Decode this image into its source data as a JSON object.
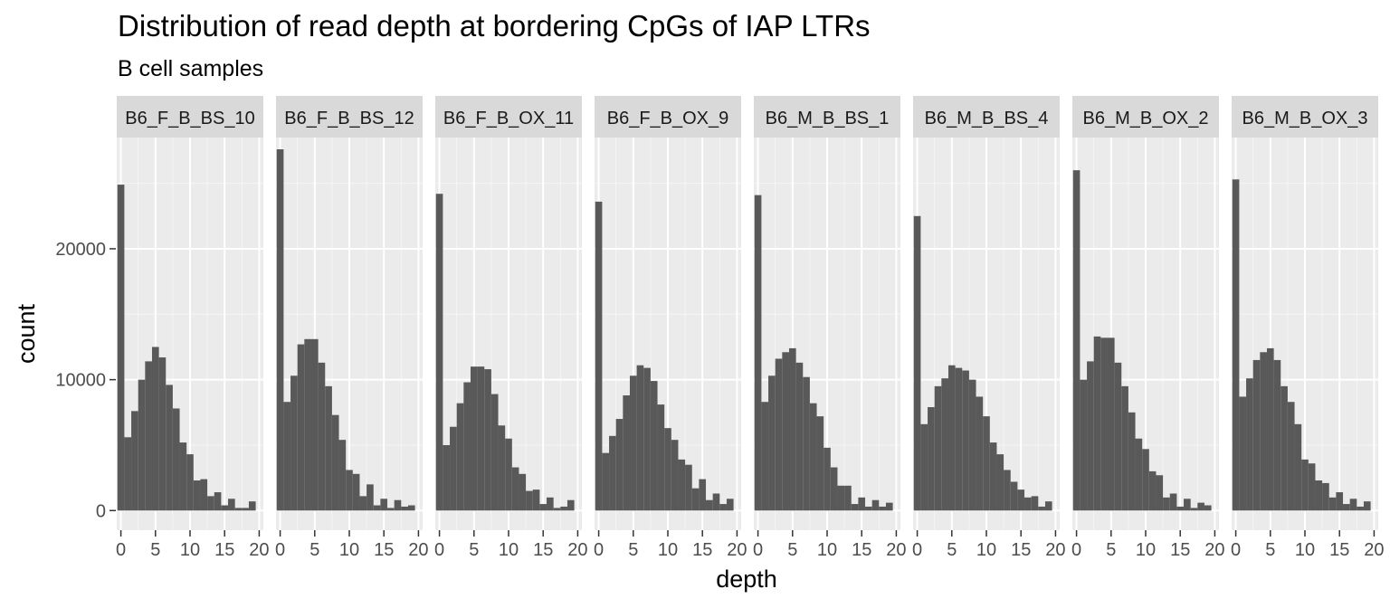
{
  "chart_data": {
    "type": "bar",
    "title": "Distribution of read depth at bordering CpGs of IAP LTRs",
    "subtitle": "B cell samples",
    "xlabel": "depth",
    "ylabel": "count",
    "xlim": [
      -0.6,
      20.6
    ],
    "ylim": [
      -1500,
      28500
    ],
    "x_ticks": [
      0,
      5,
      10,
      15,
      20
    ],
    "y_ticks": [
      0,
      10000,
      20000
    ],
    "y_tick_labels": [
      "0",
      "10000",
      "20000"
    ],
    "grid": true,
    "bar_color": "#595959",
    "panel_background": "#ebebeb",
    "strip_background": "#d9d9d9",
    "bins": [
      0,
      1,
      2,
      3,
      4,
      5,
      6,
      7,
      8,
      9,
      10,
      11,
      12,
      13,
      14,
      15,
      16,
      17,
      18,
      19,
      20
    ],
    "facets": [
      {
        "name": "B6_F_B_BS_10",
        "values": [
          24900,
          5600,
          7600,
          10000,
          11400,
          12500,
          11700,
          9600,
          7800,
          5200,
          4300,
          2300,
          2400,
          1100,
          1400,
          400,
          900,
          200,
          200,
          700,
          0
        ]
      },
      {
        "name": "B6_F_B_BS_12",
        "values": [
          27600,
          8300,
          10300,
          12700,
          13100,
          13100,
          11300,
          9500,
          7300,
          5400,
          3100,
          2800,
          1100,
          2000,
          400,
          900,
          200,
          800,
          300,
          400,
          0
        ]
      },
      {
        "name": "B6_F_B_OX_11",
        "values": [
          24200,
          5000,
          6400,
          8200,
          9800,
          11000,
          11000,
          10800,
          8900,
          6500,
          5500,
          3300,
          2800,
          1500,
          1600,
          500,
          1000,
          200,
          300,
          800,
          0
        ]
      },
      {
        "name": "B6_F_B_OX_9",
        "values": [
          23600,
          4400,
          5700,
          7000,
          8800,
          10300,
          11100,
          10900,
          9900,
          8100,
          6300,
          5400,
          3900,
          3500,
          1700,
          2400,
          800,
          1300,
          500,
          900,
          0
        ]
      },
      {
        "name": "B6_M_B_BS_1",
        "values": [
          24100,
          8300,
          10300,
          11600,
          12100,
          12400,
          11300,
          10200,
          8200,
          7200,
          4800,
          3300,
          1900,
          1900,
          500,
          1000,
          300,
          800,
          300,
          600,
          0
        ]
      },
      {
        "name": "B6_M_B_BS_4",
        "values": [
          22500,
          6600,
          7900,
          9500,
          10100,
          11100,
          10900,
          10700,
          10000,
          8700,
          7200,
          5200,
          4300,
          3100,
          2200,
          1600,
          1000,
          1100,
          300,
          700,
          0
        ]
      },
      {
        "name": "B6_M_B_OX_2",
        "values": [
          26000,
          10000,
          11400,
          13300,
          13200,
          13200,
          11300,
          9500,
          7500,
          5500,
          4700,
          3000,
          2700,
          1000,
          1300,
          300,
          900,
          200,
          600,
          400,
          0
        ]
      },
      {
        "name": "B6_M_B_OX_3",
        "values": [
          25300,
          8700,
          10100,
          11500,
          12100,
          12400,
          11500,
          9500,
          8300,
          6600,
          3900,
          3600,
          2300,
          2100,
          1000,
          1400,
          500,
          900,
          300,
          700,
          0
        ]
      }
    ]
  }
}
